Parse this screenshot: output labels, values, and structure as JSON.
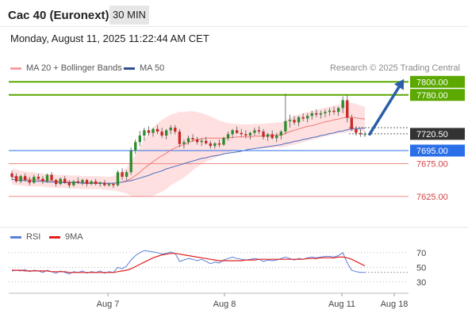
{
  "header": {
    "title": "Cac 40 (Euronext)",
    "timeframe": "30 MIN",
    "datetime": "Monday, August 11, 2025 11:22:44 AM CET"
  },
  "legend": {
    "bollinger_label": "MA 20 + Bollinger Bands",
    "ma50_label": "MA 50",
    "credit": "Research © 2025 Trading Central"
  },
  "rsi_legend": {
    "rsi_label": "RSI",
    "ma_label": "9MA"
  },
  "colors": {
    "resistance": "#5aa800",
    "support": "#2a6ee8",
    "bollinger_fill": "#fdd6d6",
    "ma20": "#f07878",
    "ma50": "#4a6fc0",
    "current_price": "#333333",
    "arrow": "#2a5ea8",
    "rsi": "#5b7fdb",
    "rsi_ma": "#e02020"
  },
  "chart_data": [
    {
      "type": "candlestick",
      "x_ticks": [
        "Aug 7",
        "Aug 8",
        "Aug 11",
        "Aug 18"
      ],
      "price_levels": [
        {
          "value": 7800.0,
          "label": "7800.00",
          "kind": "resistance"
        },
        {
          "value": 7780.0,
          "label": "7780.00",
          "kind": "resistance"
        },
        {
          "value": 7720.5,
          "label": "7720.50",
          "kind": "current"
        },
        {
          "value": 7695.0,
          "label": "7695.00",
          "kind": "support"
        },
        {
          "value": 7675.0,
          "label": "7675.00",
          "kind": "level"
        },
        {
          "value": 7625.0,
          "label": "7625.00",
          "kind": "level"
        }
      ],
      "ylim": [
        7580,
        7810
      ],
      "ohlc": [
        [
          7660,
          7664,
          7650,
          7655
        ],
        [
          7656,
          7660,
          7646,
          7648
        ],
        [
          7648,
          7658,
          7645,
          7656
        ],
        [
          7656,
          7660,
          7648,
          7650
        ],
        [
          7650,
          7655,
          7642,
          7646
        ],
        [
          7646,
          7658,
          7644,
          7655
        ],
        [
          7655,
          7660,
          7650,
          7652
        ],
        [
          7652,
          7656,
          7644,
          7648
        ],
        [
          7648,
          7660,
          7646,
          7658
        ],
        [
          7658,
          7662,
          7648,
          7650
        ],
        [
          7650,
          7652,
          7640,
          7644
        ],
        [
          7644,
          7654,
          7642,
          7652
        ],
        [
          7652,
          7656,
          7644,
          7646
        ],
        [
          7646,
          7650,
          7638,
          7642
        ],
        [
          7642,
          7650,
          7640,
          7648
        ],
        [
          7648,
          7654,
          7644,
          7646
        ],
        [
          7646,
          7652,
          7642,
          7650
        ],
        [
          7650,
          7652,
          7640,
          7644
        ],
        [
          7644,
          7650,
          7642,
          7648
        ],
        [
          7648,
          7652,
          7642,
          7644
        ],
        [
          7644,
          7648,
          7640,
          7646
        ],
        [
          7646,
          7650,
          7640,
          7642
        ],
        [
          7642,
          7646,
          7640,
          7644
        ],
        [
          7644,
          7646,
          7638,
          7642
        ],
        [
          7642,
          7665,
          7640,
          7662
        ],
        [
          7662,
          7668,
          7650,
          7655
        ],
        [
          7655,
          7665,
          7650,
          7662
        ],
        [
          7662,
          7700,
          7658,
          7695
        ],
        [
          7695,
          7712,
          7690,
          7708
        ],
        [
          7708,
          7725,
          7702,
          7718
        ],
        [
          7718,
          7730,
          7710,
          7726
        ],
        [
          7726,
          7732,
          7718,
          7722
        ],
        [
          7722,
          7730,
          7716,
          7728
        ],
        [
          7728,
          7734,
          7720,
          7724
        ],
        [
          7724,
          7730,
          7714,
          7718
        ],
        [
          7718,
          7728,
          7712,
          7726
        ],
        [
          7726,
          7734,
          7720,
          7730
        ],
        [
          7730,
          7734,
          7720,
          7724
        ],
        [
          7724,
          7728,
          7700,
          7705
        ],
        [
          7705,
          7712,
          7698,
          7708
        ],
        [
          7708,
          7718,
          7704,
          7714
        ],
        [
          7714,
          7720,
          7708,
          7712
        ],
        [
          7712,
          7716,
          7704,
          7708
        ],
        [
          7708,
          7714,
          7702,
          7710
        ],
        [
          7710,
          7716,
          7704,
          7706
        ],
        [
          7706,
          7710,
          7698,
          7702
        ],
        [
          7702,
          7708,
          7698,
          7706
        ],
        [
          7706,
          7712,
          7700,
          7704
        ],
        [
          7704,
          7716,
          7702,
          7714
        ],
        [
          7714,
          7724,
          7710,
          7720
        ],
        [
          7720,
          7728,
          7714,
          7726
        ],
        [
          7726,
          7732,
          7720,
          7722
        ],
        [
          7722,
          7728,
          7716,
          7720
        ],
        [
          7720,
          7726,
          7714,
          7718
        ],
        [
          7718,
          7724,
          7712,
          7722
        ],
        [
          7722,
          7730,
          7718,
          7726
        ],
        [
          7726,
          7732,
          7720,
          7724
        ],
        [
          7724,
          7728,
          7712,
          7716
        ],
        [
          7716,
          7722,
          7710,
          7720
        ],
        [
          7720,
          7726,
          7712,
          7714
        ],
        [
          7714,
          7722,
          7708,
          7718
        ],
        [
          7718,
          7726,
          7712,
          7724
        ],
        [
          7724,
          7782,
          7720,
          7740
        ],
        [
          7740,
          7750,
          7730,
          7742
        ],
        [
          7742,
          7748,
          7734,
          7738
        ],
        [
          7738,
          7748,
          7732,
          7746
        ],
        [
          7746,
          7752,
          7740,
          7744
        ],
        [
          7744,
          7752,
          7738,
          7748
        ],
        [
          7748,
          7756,
          7742,
          7752
        ],
        [
          7752,
          7758,
          7746,
          7750
        ],
        [
          7750,
          7756,
          7744,
          7752
        ],
        [
          7752,
          7758,
          7746,
          7754
        ],
        [
          7754,
          7760,
          7748,
          7756
        ],
        [
          7756,
          7762,
          7750,
          7754
        ],
        [
          7754,
          7762,
          7748,
          7760
        ],
        [
          7760,
          7778,
          7752,
          7772
        ],
        [
          7772,
          7780,
          7738,
          7745
        ],
        [
          7745,
          7750,
          7725,
          7728
        ],
        [
          7728,
          7732,
          7718,
          7722
        ],
        [
          7722,
          7728,
          7716,
          7720
        ],
        [
          7720,
          7724,
          7716,
          7720
        ]
      ],
      "ma20": [
        7655,
        7654,
        7653,
        7652,
        7651,
        7651,
        7650,
        7650,
        7649,
        7649,
        7648,
        7648,
        7648,
        7647,
        7647,
        7647,
        7646,
        7646,
        7646,
        7646,
        7646,
        7645,
        7645,
        7645,
        7646,
        7647,
        7649,
        7652,
        7657,
        7662,
        7668,
        7673,
        7678,
        7683,
        7687,
        7691,
        7696,
        7699,
        7702,
        7704,
        7707,
        7710,
        7712,
        7713,
        7714,
        7714,
        7714,
        7714,
        7714,
        7714,
        7715,
        7716,
        7716,
        7716,
        7716,
        7717,
        7717,
        7717,
        7718,
        7718,
        7719,
        7719,
        7721,
        7724,
        7726,
        7728,
        7730,
        7732,
        7733,
        7735,
        7737,
        7739,
        7740,
        7742,
        7743,
        7745,
        7746,
        7746,
        7745,
        7744,
        7743
      ],
      "ma50": [
        7651,
        7650,
        7650,
        7649,
        7649,
        7648,
        7648,
        7648,
        7647,
        7647,
        7647,
        7646,
        7646,
        7646,
        7646,
        7646,
        7645,
        7645,
        7645,
        7645,
        7645,
        7645,
        7645,
        7645,
        7646,
        7647,
        7648,
        7649,
        7651,
        7653,
        7655,
        7657,
        7660,
        7662,
        7664,
        7667,
        7669,
        7671,
        7673,
        7675,
        7677,
        7679,
        7681,
        7683,
        7684,
        7686,
        7687,
        7688,
        7690,
        7691,
        7692,
        7693,
        7694,
        7696,
        7697,
        7698,
        7699,
        7700,
        7701,
        7702,
        7703,
        7704,
        7706,
        7707,
        7709,
        7710,
        7712,
        7713,
        7715,
        7716,
        7718,
        7719,
        7721,
        7722,
        7724,
        7725,
        7727,
        7728,
        7728,
        7729,
        7729
      ],
      "bb_width": [
        12,
        12,
        11,
        11,
        11,
        11,
        10,
        10,
        10,
        10,
        10,
        10,
        10,
        10,
        10,
        10,
        10,
        10,
        10,
        10,
        10,
        10,
        10,
        11,
        13,
        16,
        20,
        26,
        32,
        38,
        44,
        48,
        52,
        54,
        55,
        55,
        54,
        53,
        52,
        50,
        48,
        45,
        42,
        39,
        36,
        33,
        30,
        27,
        25,
        23,
        21,
        20,
        19,
        19,
        19,
        19,
        19,
        19,
        19,
        19,
        19,
        19,
        20,
        21,
        22,
        22,
        22,
        22,
        22,
        22,
        22,
        22,
        22,
        22,
        22,
        23,
        23,
        22,
        21,
        20,
        19
      ]
    },
    {
      "type": "line",
      "series_labels": [
        "RSI",
        "9MA"
      ],
      "ylim": [
        20,
        85
      ],
      "y_ticks": [
        70,
        50,
        30
      ],
      "rsi": [
        45,
        46,
        45,
        47,
        44,
        46,
        45,
        43,
        46,
        44,
        42,
        45,
        43,
        41,
        44,
        43,
        45,
        42,
        44,
        43,
        45,
        42,
        44,
        43,
        50,
        48,
        52,
        60,
        66,
        70,
        73,
        72,
        71,
        70,
        68,
        69,
        71,
        69,
        58,
        60,
        62,
        61,
        59,
        61,
        58,
        55,
        57,
        56,
        60,
        62,
        64,
        62,
        61,
        60,
        61,
        62,
        61,
        58,
        60,
        59,
        60,
        62,
        64,
        62,
        60,
        62,
        61,
        63,
        64,
        63,
        64,
        65,
        65,
        64,
        66,
        70,
        56,
        46,
        44,
        43,
        43
      ],
      "rsi_ma": [
        46,
        46,
        46,
        45,
        45,
        45,
        45,
        45,
        45,
        44,
        44,
        44,
        44,
        43,
        43,
        43,
        43,
        43,
        43,
        43,
        43,
        43,
        43,
        43,
        44,
        45,
        46,
        48,
        51,
        54,
        57,
        60,
        63,
        65,
        67,
        68,
        69,
        69,
        68,
        67,
        66,
        65,
        64,
        63,
        62,
        61,
        60,
        59,
        59,
        59,
        59,
        59,
        59,
        60,
        60,
        60,
        61,
        61,
        61,
        61,
        61,
        61,
        61,
        61,
        61,
        61,
        61,
        62,
        62,
        62,
        63,
        63,
        63,
        63,
        64,
        64,
        63,
        61,
        58,
        55,
        52
      ]
    }
  ]
}
